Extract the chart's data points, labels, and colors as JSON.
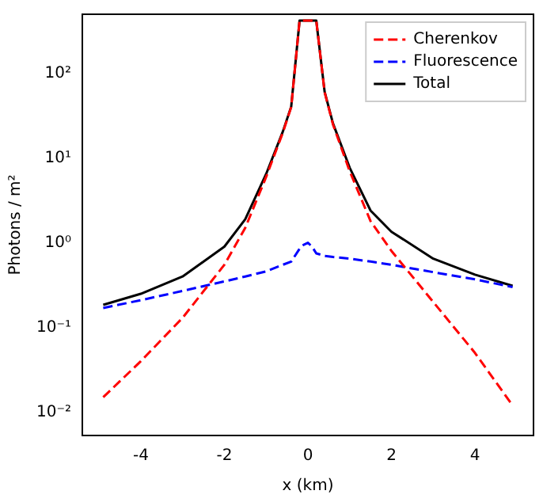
{
  "chart_data": {
    "type": "line",
    "xlabel": "x (km)",
    "ylabel": "Photons / m²",
    "log": "y",
    "legend": "top right",
    "grid": false,
    "marker": "none",
    "xlim": [
      -5.4,
      5.4
    ],
    "xticks": [
      -4,
      -2,
      0,
      2,
      4
    ],
    "ylim": [
      0.0053,
      500
    ],
    "yticks": [
      {
        "value": 0.01,
        "label": "10⁻²"
      },
      {
        "value": 0.1,
        "label": "10⁻¹"
      },
      {
        "value": 1,
        "label": "10⁰"
      },
      {
        "value": 10,
        "label": "10¹"
      },
      {
        "value": 100,
        "label": "10²"
      }
    ],
    "x": [
      -4.9,
      -4,
      -3,
      -2,
      -1.5,
      -1,
      -0.6,
      -0.4,
      -0.2,
      -0.1,
      0,
      0.1,
      0.2,
      0.4,
      0.6,
      1,
      1.5,
      2,
      3,
      4,
      4.9
    ],
    "series": [
      {
        "name": "Cherenkov",
        "color": "#ff0000",
        "line_style": "dashed",
        "values": [
          0.015,
          0.04,
          0.13,
          0.55,
          1.5,
          6,
          20,
          40,
          420,
          420,
          420,
          420,
          420,
          60,
          25,
          7,
          1.8,
          0.8,
          0.2,
          0.05,
          0.012
        ]
      },
      {
        "name": "Fluorescence",
        "color": "#0000ff",
        "line_style": "dashed",
        "values": [
          0.17,
          0.21,
          0.27,
          0.35,
          0.4,
          0.46,
          0.55,
          0.6,
          0.85,
          0.95,
          1.0,
          0.9,
          0.75,
          0.7,
          0.68,
          0.65,
          0.6,
          0.55,
          0.45,
          0.37,
          0.3
        ]
      },
      {
        "name": "Total",
        "color": "#000000",
        "line_style": "solid",
        "values": [
          0.185,
          0.25,
          0.4,
          0.9,
          1.9,
          6.5,
          20.6,
          40.6,
          421,
          421,
          421,
          421,
          421,
          60.7,
          25.7,
          7.7,
          2.4,
          1.35,
          0.65,
          0.42,
          0.31
        ]
      }
    ]
  }
}
